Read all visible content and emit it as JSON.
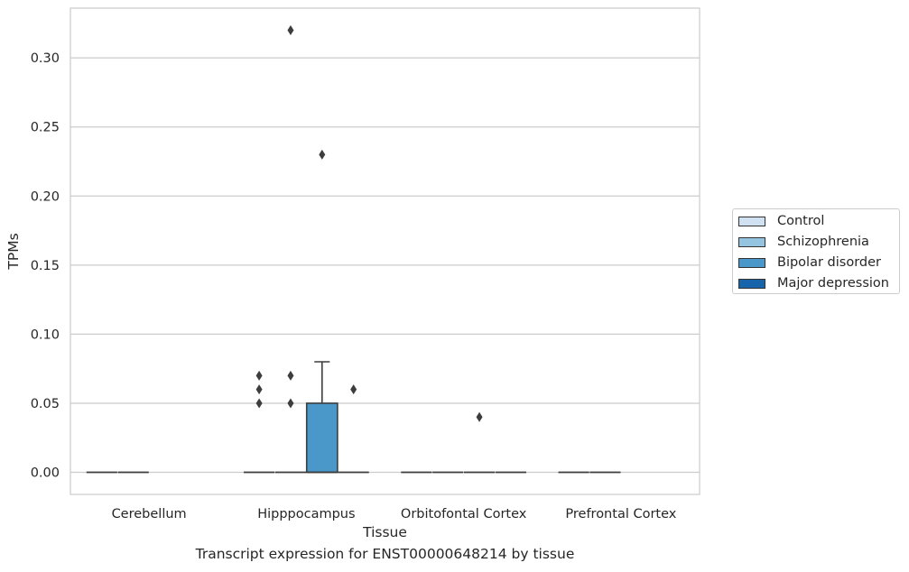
{
  "chart_data": {
    "type": "box",
    "title": "",
    "caption": "Transcript expression for ENST00000648214 by tissue",
    "xlabel": "Tissue",
    "ylabel": "TPMs",
    "ylim": [
      -0.016,
      0.336
    ],
    "yticks": [
      "0.00",
      "0.05",
      "0.10",
      "0.15",
      "0.20",
      "0.25",
      "0.30"
    ],
    "grid": "horizontal",
    "legend_position": "right",
    "categories": [
      "Cerebellum",
      "Hipppocampus",
      "Orbitofontal Cortex",
      "Prefrontal Cortex"
    ],
    "series": [
      {
        "name": "Control",
        "color": "#d0e1f2"
      },
      {
        "name": "Schizophrenia",
        "color": "#94c4df"
      },
      {
        "name": "Bipolar disorder",
        "color": "#4a98c9"
      },
      {
        "name": "Major depression",
        "color": "#1764ab"
      }
    ],
    "boxes": [
      {
        "category": "Cerebellum",
        "series": "Control",
        "q1": 0,
        "median": 0,
        "q3": 0,
        "whisker_low": 0,
        "whisker_high": 0,
        "outliers": []
      },
      {
        "category": "Cerebellum",
        "series": "Schizophrenia",
        "q1": 0,
        "median": 0,
        "q3": 0,
        "whisker_low": 0,
        "whisker_high": 0,
        "outliers": []
      },
      {
        "category": "Hipppocampus",
        "series": "Control",
        "q1": 0,
        "median": 0,
        "q3": 0,
        "whisker_low": 0,
        "whisker_high": 0,
        "outliers": [
          0.05,
          0.06,
          0.07
        ]
      },
      {
        "category": "Hipppocampus",
        "series": "Schizophrenia",
        "q1": 0,
        "median": 0,
        "q3": 0,
        "whisker_low": 0,
        "whisker_high": 0,
        "outliers": [
          0.05,
          0.07,
          0.32
        ]
      },
      {
        "category": "Hipppocampus",
        "series": "Bipolar disorder",
        "q1": 0,
        "median": 0,
        "q3": 0.05,
        "whisker_low": 0,
        "whisker_high": 0.08,
        "outliers": [
          0.23
        ]
      },
      {
        "category": "Hipppocampus",
        "series": "Major depression",
        "q1": 0,
        "median": 0,
        "q3": 0,
        "whisker_low": 0,
        "whisker_high": 0,
        "outliers": [
          0.06
        ]
      },
      {
        "category": "Orbitofontal Cortex",
        "series": "Control",
        "q1": 0,
        "median": 0,
        "q3": 0,
        "whisker_low": 0,
        "whisker_high": 0,
        "outliers": []
      },
      {
        "category": "Orbitofontal Cortex",
        "series": "Schizophrenia",
        "q1": 0,
        "median": 0,
        "q3": 0,
        "whisker_low": 0,
        "whisker_high": 0,
        "outliers": []
      },
      {
        "category": "Orbitofontal Cortex",
        "series": "Bipolar disorder",
        "q1": 0,
        "median": 0,
        "q3": 0,
        "whisker_low": 0,
        "whisker_high": 0,
        "outliers": [
          0.04
        ]
      },
      {
        "category": "Orbitofontal Cortex",
        "series": "Major depression",
        "q1": 0,
        "median": 0,
        "q3": 0,
        "whisker_low": 0,
        "whisker_high": 0,
        "outliers": []
      },
      {
        "category": "Prefrontal Cortex",
        "series": "Control",
        "q1": 0,
        "median": 0,
        "q3": 0,
        "whisker_low": 0,
        "whisker_high": 0,
        "outliers": []
      },
      {
        "category": "Prefrontal Cortex",
        "series": "Schizophrenia",
        "q1": 0,
        "median": 0,
        "q3": 0,
        "whisker_low": 0,
        "whisker_high": 0,
        "outliers": []
      }
    ]
  }
}
